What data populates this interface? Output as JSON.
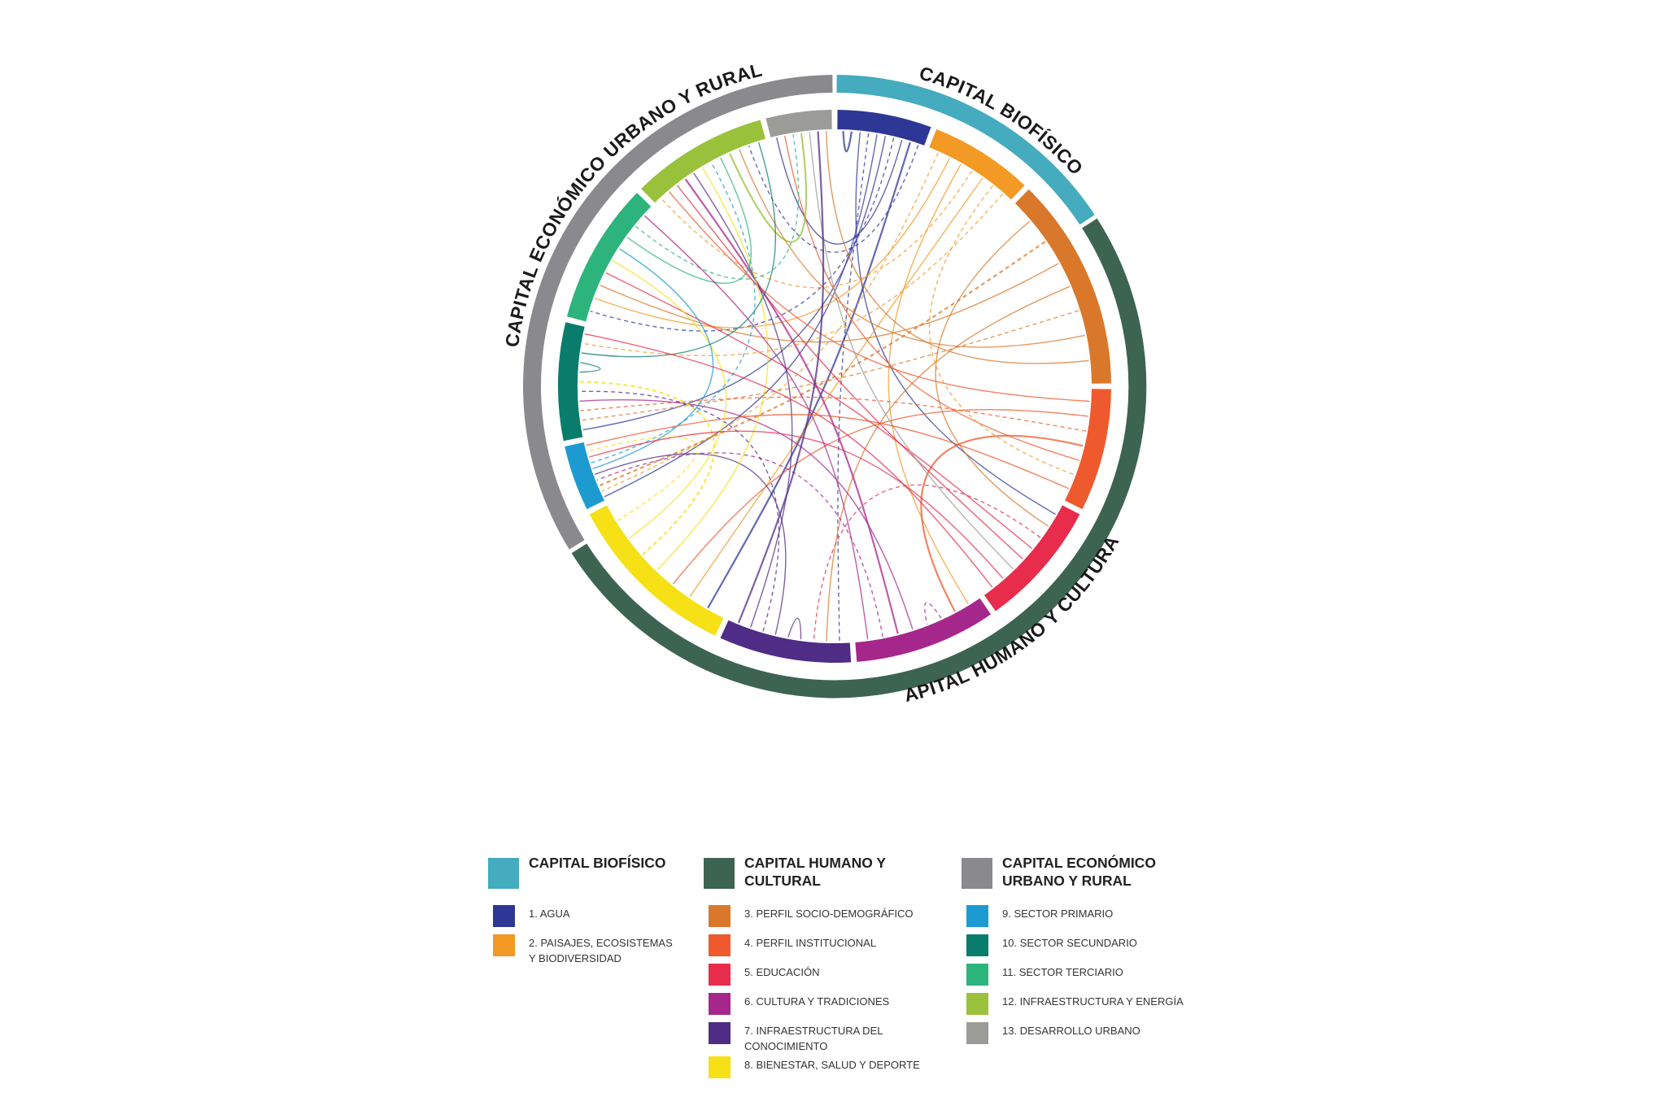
{
  "chart_data": {
    "type": "chord",
    "groups": [
      {
        "id": "bio",
        "label": "CAPITAL BIOFÍSICO",
        "color": "#45abbe",
        "categories": [
          {
            "id": 1,
            "label": "1. AGUA",
            "color": "#2e3795"
          },
          {
            "id": 2,
            "label": "2. PAISAJES, ECOSISTEMAS Y BIODIVERSIDAD",
            "color": "#f29a24"
          }
        ]
      },
      {
        "id": "hum",
        "label": "CAPITAL HUMANO Y CULTURAL",
        "ring_label": "CAPITAL  HUMANO Y CULTURAL",
        "color": "#3d6450",
        "categories": [
          {
            "id": 3,
            "label": "3. PERFIL SOCIO-DEMOGRÁFICO",
            "color": "#d9782b"
          },
          {
            "id": 4,
            "label": "4. PERFIL INSTITUCIONAL",
            "color": "#ee5a2e"
          },
          {
            "id": 5,
            "label": "5. EDUCACIÓN",
            "color": "#e72d4b"
          },
          {
            "id": 6,
            "label": "6. CULTURA Y TRADICIONES",
            "color": "#a6278c"
          },
          {
            "id": 7,
            "label": "7. INFRAESTRUCTURA DEL CONOCIMIENTO",
            "color": "#4f2c85"
          },
          {
            "id": 8,
            "label": "8. BIENESTAR, SALUD Y DEPORTE",
            "color": "#f6e016"
          }
        ]
      },
      {
        "id": "eco",
        "label": "CAPITAL ECONÓMICO URBANO Y RURAL",
        "color": "#8a8a8e",
        "categories": [
          {
            "id": 9,
            "label": "9. SECTOR PRIMARIO",
            "color": "#1d9bd0"
          },
          {
            "id": 10,
            "label": "10. SECTOR SECUNDARIO",
            "color": "#0a7c6c"
          },
          {
            "id": 11,
            "label": "11. SECTOR TERCIARIO",
            "color": "#2db37c"
          },
          {
            "id": 12,
            "label": "12. INFRAESTRUCTURA Y ENERGÍA",
            "color": "#9ac13b"
          },
          {
            "id": 13,
            "label": "13. DESARROLLO URBANO",
            "color": "#9b9b98"
          }
        ]
      }
    ],
    "links": [
      {
        "from": 1,
        "to": 1
      },
      {
        "from": 1,
        "to": 5
      },
      {
        "from": 1,
        "to": 7
      },
      {
        "from": 1,
        "to": 9
      },
      {
        "from": 1,
        "to": 10
      },
      {
        "from": 1,
        "to": 11
      },
      {
        "from": 1,
        "to": 13
      },
      {
        "from": 1,
        "to": 8
      },
      {
        "from": 2,
        "to": 9
      },
      {
        "from": 2,
        "to": 11
      },
      {
        "from": 2,
        "to": 6
      },
      {
        "from": 2,
        "to": 12
      },
      {
        "from": 2,
        "to": 8
      },
      {
        "from": 3,
        "to": 5
      },
      {
        "from": 3,
        "to": 9
      },
      {
        "from": 3,
        "to": 11
      },
      {
        "from": 3,
        "to": 7
      },
      {
        "from": 3,
        "to": 10
      },
      {
        "from": 4,
        "to": 12
      },
      {
        "from": 4,
        "to": 8
      },
      {
        "from": 4,
        "to": 10
      },
      {
        "from": 4,
        "to": 6
      },
      {
        "from": 4,
        "to": 13
      },
      {
        "from": 5,
        "to": 7
      },
      {
        "from": 5,
        "to": 11
      },
      {
        "from": 5,
        "to": 12
      },
      {
        "from": 6,
        "to": 6
      },
      {
        "from": 6,
        "to": 10
      },
      {
        "from": 6,
        "to": 12
      },
      {
        "from": 6,
        "to": 9
      },
      {
        "from": 7,
        "to": 7
      },
      {
        "from": 7,
        "to": 9
      },
      {
        "from": 7,
        "to": 10
      },
      {
        "from": 7,
        "to": 12
      },
      {
        "from": 8,
        "to": 12
      },
      {
        "from": 8,
        "to": 10
      },
      {
        "from": 8,
        "to": 11
      },
      {
        "from": 9,
        "to": 11
      },
      {
        "from": 9,
        "to": 12
      },
      {
        "from": 10,
        "to": 10
      },
      {
        "from": 11,
        "to": 12
      },
      {
        "from": 11,
        "to": 13
      },
      {
        "from": 12,
        "to": 13
      },
      {
        "from": 13,
        "to": 5
      },
      {
        "from": 2,
        "to": 4
      },
      {
        "from": 3,
        "to": 12
      },
      {
        "from": 5,
        "to": 9
      },
      {
        "from": 1,
        "to": 12
      },
      {
        "from": 6,
        "to": 11
      },
      {
        "from": 7,
        "to": 13
      },
      {
        "from": 8,
        "to": 9
      },
      {
        "from": 10,
        "to": 12
      },
      {
        "from": 4,
        "to": 9
      },
      {
        "from": 2,
        "to": 10
      },
      {
        "from": 3,
        "to": 13
      },
      {
        "from": 5,
        "to": 10
      }
    ]
  }
}
